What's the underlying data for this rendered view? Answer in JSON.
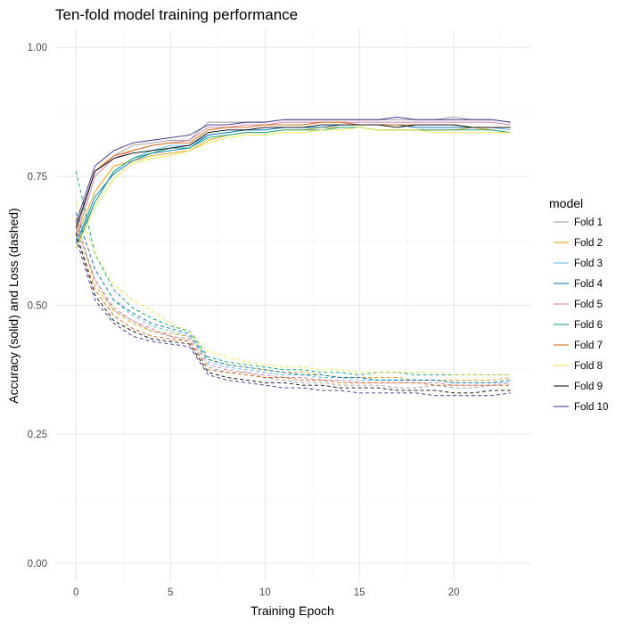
{
  "chart_data": {
    "type": "line",
    "title": "Ten-fold model training performance",
    "xlabel": "Training Epoch",
    "ylabel": "Accuracy (solid) and Loss (dashed)",
    "xlim": [
      -1.1,
      24.1
    ],
    "ylim": [
      -0.035,
      1.035
    ],
    "x_ticks": [
      0,
      5,
      10,
      15,
      20
    ],
    "y_ticks": [
      0.0,
      0.25,
      0.5,
      0.75,
      1.0
    ],
    "y_tick_labels": [
      "0.00",
      "0.25",
      "0.50",
      "0.75",
      "1.00"
    ],
    "grid": true,
    "legend_title": "model",
    "legend_position": "right",
    "x": [
      0,
      1,
      2,
      3,
      4,
      5,
      6,
      7,
      8,
      9,
      10,
      11,
      12,
      13,
      14,
      15,
      16,
      17,
      18,
      19,
      20,
      21,
      22,
      23
    ],
    "series": [
      {
        "name": "Fold 1",
        "color": "#999999",
        "accuracy": [
          0.64,
          0.76,
          0.79,
          0.81,
          0.815,
          0.82,
          0.82,
          0.855,
          0.855,
          0.855,
          0.855,
          0.86,
          0.86,
          0.86,
          0.86,
          0.86,
          0.86,
          0.86,
          0.86,
          0.86,
          0.865,
          0.86,
          0.86,
          0.855
        ],
        "loss": [
          0.65,
          0.55,
          0.49,
          0.47,
          0.45,
          0.44,
          0.43,
          0.38,
          0.37,
          0.37,
          0.36,
          0.355,
          0.35,
          0.35,
          0.345,
          0.345,
          0.345,
          0.34,
          0.34,
          0.345,
          0.34,
          0.34,
          0.345,
          0.345
        ]
      },
      {
        "name": "Fold 2",
        "color": "#E69F00",
        "accuracy": [
          0.63,
          0.72,
          0.77,
          0.78,
          0.79,
          0.795,
          0.8,
          0.82,
          0.83,
          0.835,
          0.835,
          0.84,
          0.84,
          0.845,
          0.845,
          0.845,
          0.84,
          0.84,
          0.84,
          0.84,
          0.84,
          0.845,
          0.84,
          0.835
        ],
        "loss": [
          0.67,
          0.54,
          0.49,
          0.465,
          0.45,
          0.445,
          0.44,
          0.395,
          0.385,
          0.38,
          0.375,
          0.37,
          0.37,
          0.365,
          0.36,
          0.36,
          0.36,
          0.36,
          0.355,
          0.355,
          0.355,
          0.355,
          0.355,
          0.36
        ]
      },
      {
        "name": "Fold 3",
        "color": "#56B4E9",
        "accuracy": [
          0.62,
          0.7,
          0.76,
          0.785,
          0.8,
          0.81,
          0.81,
          0.83,
          0.835,
          0.84,
          0.84,
          0.845,
          0.845,
          0.845,
          0.85,
          0.85,
          0.85,
          0.85,
          0.845,
          0.845,
          0.845,
          0.845,
          0.845,
          0.84
        ],
        "loss": [
          0.68,
          0.57,
          0.51,
          0.48,
          0.46,
          0.45,
          0.44,
          0.39,
          0.38,
          0.375,
          0.37,
          0.365,
          0.365,
          0.36,
          0.36,
          0.355,
          0.355,
          0.355,
          0.355,
          0.355,
          0.35,
          0.35,
          0.35,
          0.35
        ]
      },
      {
        "name": "Fold 4",
        "color": "#0072B2",
        "accuracy": [
          0.62,
          0.71,
          0.755,
          0.78,
          0.795,
          0.8,
          0.805,
          0.83,
          0.835,
          0.84,
          0.84,
          0.845,
          0.845,
          0.845,
          0.85,
          0.85,
          0.85,
          0.85,
          0.845,
          0.845,
          0.845,
          0.845,
          0.845,
          0.845
        ],
        "loss": [
          0.68,
          0.57,
          0.51,
          0.485,
          0.465,
          0.455,
          0.445,
          0.395,
          0.385,
          0.38,
          0.375,
          0.37,
          0.365,
          0.365,
          0.36,
          0.36,
          0.355,
          0.355,
          0.355,
          0.355,
          0.35,
          0.35,
          0.35,
          0.355
        ]
      },
      {
        "name": "Fold 5",
        "color": "#CC79A7",
        "accuracy": [
          0.63,
          0.75,
          0.785,
          0.8,
          0.81,
          0.815,
          0.82,
          0.845,
          0.845,
          0.85,
          0.85,
          0.855,
          0.855,
          0.855,
          0.855,
          0.855,
          0.855,
          0.855,
          0.855,
          0.855,
          0.855,
          0.855,
          0.855,
          0.85
        ],
        "loss": [
          0.66,
          0.55,
          0.495,
          0.47,
          0.455,
          0.44,
          0.435,
          0.385,
          0.375,
          0.37,
          0.365,
          0.36,
          0.36,
          0.355,
          0.355,
          0.35,
          0.35,
          0.35,
          0.35,
          0.35,
          0.345,
          0.345,
          0.345,
          0.35
        ]
      },
      {
        "name": "Fold 6",
        "color": "#009E73",
        "accuracy": [
          0.61,
          0.7,
          0.76,
          0.785,
          0.795,
          0.805,
          0.805,
          0.825,
          0.83,
          0.835,
          0.835,
          0.84,
          0.84,
          0.84,
          0.845,
          0.845,
          0.84,
          0.84,
          0.84,
          0.84,
          0.84,
          0.84,
          0.84,
          0.835
        ],
        "loss": [
          0.76,
          0.6,
          0.53,
          0.495,
          0.475,
          0.46,
          0.45,
          0.4,
          0.39,
          0.385,
          0.38,
          0.375,
          0.375,
          0.37,
          0.37,
          0.365,
          0.37,
          0.37,
          0.365,
          0.365,
          0.365,
          0.365,
          0.365,
          0.365
        ]
      },
      {
        "name": "Fold 7",
        "color": "#D55E00",
        "accuracy": [
          0.65,
          0.76,
          0.79,
          0.8,
          0.81,
          0.815,
          0.815,
          0.84,
          0.845,
          0.845,
          0.85,
          0.85,
          0.85,
          0.855,
          0.855,
          0.85,
          0.85,
          0.85,
          0.85,
          0.85,
          0.85,
          0.845,
          0.845,
          0.845
        ],
        "loss": [
          0.64,
          0.53,
          0.48,
          0.455,
          0.44,
          0.435,
          0.43,
          0.375,
          0.37,
          0.365,
          0.36,
          0.36,
          0.355,
          0.355,
          0.35,
          0.35,
          0.35,
          0.35,
          0.35,
          0.345,
          0.345,
          0.345,
          0.345,
          0.345
        ]
      },
      {
        "name": "Fold 8",
        "color": "#F0E442",
        "accuracy": [
          0.61,
          0.69,
          0.745,
          0.775,
          0.785,
          0.79,
          0.8,
          0.815,
          0.825,
          0.83,
          0.83,
          0.835,
          0.835,
          0.84,
          0.84,
          0.845,
          0.84,
          0.84,
          0.84,
          0.835,
          0.835,
          0.835,
          0.835,
          0.835
        ],
        "loss": [
          0.7,
          0.6,
          0.54,
          0.51,
          0.49,
          0.465,
          0.45,
          0.41,
          0.4,
          0.39,
          0.385,
          0.38,
          0.38,
          0.375,
          0.375,
          0.37,
          0.37,
          0.37,
          0.37,
          0.37,
          0.365,
          0.365,
          0.365,
          0.365
        ]
      },
      {
        "name": "Fold 9",
        "color": "#000000",
        "accuracy": [
          0.65,
          0.76,
          0.785,
          0.795,
          0.8,
          0.805,
          0.81,
          0.835,
          0.84,
          0.84,
          0.845,
          0.845,
          0.845,
          0.85,
          0.85,
          0.85,
          0.85,
          0.845,
          0.85,
          0.85,
          0.85,
          0.845,
          0.845,
          0.845
        ],
        "loss": [
          0.64,
          0.52,
          0.47,
          0.45,
          0.435,
          0.43,
          0.425,
          0.37,
          0.36,
          0.355,
          0.35,
          0.35,
          0.345,
          0.345,
          0.34,
          0.34,
          0.34,
          0.335,
          0.335,
          0.335,
          0.33,
          0.33,
          0.335,
          0.335
        ]
      },
      {
        "name": "Fold 10",
        "color": "#3A2E8C",
        "accuracy": [
          0.66,
          0.77,
          0.8,
          0.815,
          0.82,
          0.825,
          0.83,
          0.85,
          0.85,
          0.855,
          0.855,
          0.86,
          0.86,
          0.86,
          0.86,
          0.86,
          0.86,
          0.865,
          0.86,
          0.86,
          0.86,
          0.86,
          0.86,
          0.855
        ],
        "loss": [
          0.63,
          0.51,
          0.465,
          0.44,
          0.43,
          0.425,
          0.42,
          0.365,
          0.355,
          0.35,
          0.345,
          0.34,
          0.34,
          0.335,
          0.335,
          0.33,
          0.33,
          0.33,
          0.33,
          0.325,
          0.325,
          0.325,
          0.325,
          0.33
        ]
      }
    ]
  }
}
